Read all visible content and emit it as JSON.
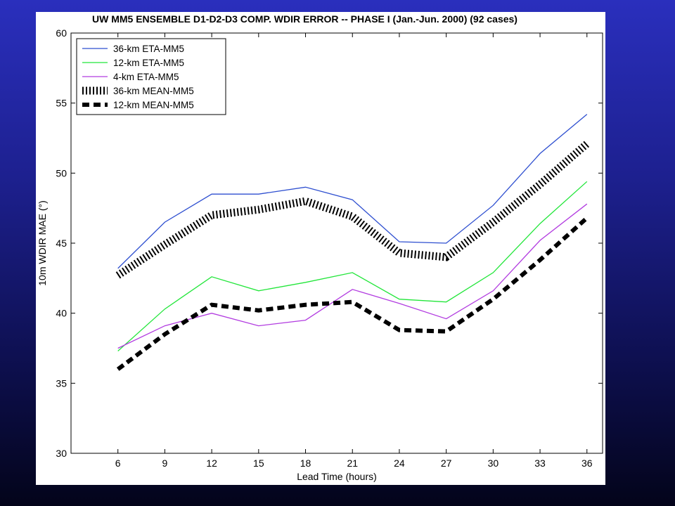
{
  "chart_data": {
    "type": "line",
    "title": "UW MM5 ENSEMBLE D1-D2-D3 COMP. WDIR ERROR -- PHASE I (Jan.-Jun. 2000) (92 cases)",
    "xlabel": "Lead Time (hours)",
    "ylabel": "10m WDIR MAE (°)",
    "x": [
      6,
      9,
      12,
      15,
      18,
      21,
      24,
      27,
      30,
      33,
      36
    ],
    "xlim": [
      3,
      37
    ],
    "ylim": [
      30,
      60
    ],
    "xticks": [
      "6",
      "9",
      "12",
      "15",
      "18",
      "21",
      "24",
      "27",
      "30",
      "33",
      "36"
    ],
    "yticks": [
      "30",
      "35",
      "40",
      "45",
      "50",
      "55",
      "60"
    ],
    "grid": false,
    "legend_position": "top-left",
    "series": [
      {
        "name": "36-km ETA-MM5",
        "color": "#2e4fd0",
        "style": "solid",
        "values": [
          43.2,
          46.5,
          48.5,
          48.5,
          49.0,
          48.1,
          45.1,
          45.0,
          47.7,
          51.4,
          54.2
        ]
      },
      {
        "name": "12-km ETA-MM5",
        "color": "#22e63a",
        "style": "solid",
        "values": [
          37.3,
          40.3,
          42.6,
          41.6,
          42.2,
          42.9,
          41.0,
          40.8,
          42.9,
          46.4,
          49.4
        ]
      },
      {
        "name": "4-km ETA-MM5",
        "color": "#b23ce0",
        "style": "solid",
        "values": [
          37.5,
          39.1,
          40.0,
          39.1,
          39.5,
          41.7,
          40.7,
          39.6,
          41.6,
          45.2,
          47.8
        ]
      },
      {
        "name": "36-km MEAN-MM5",
        "color": "#000000",
        "style": "hatched",
        "values": [
          42.7,
          44.9,
          47.0,
          47.4,
          48.0,
          46.9,
          44.3,
          44.0,
          46.5,
          49.2,
          52.1
        ]
      },
      {
        "name": "12-km MEAN-MM5",
        "color": "#000000",
        "style": "thick-dashed",
        "values": [
          36.0,
          38.5,
          40.6,
          40.2,
          40.6,
          40.8,
          38.8,
          38.7,
          41.0,
          43.8,
          46.8
        ]
      }
    ]
  }
}
